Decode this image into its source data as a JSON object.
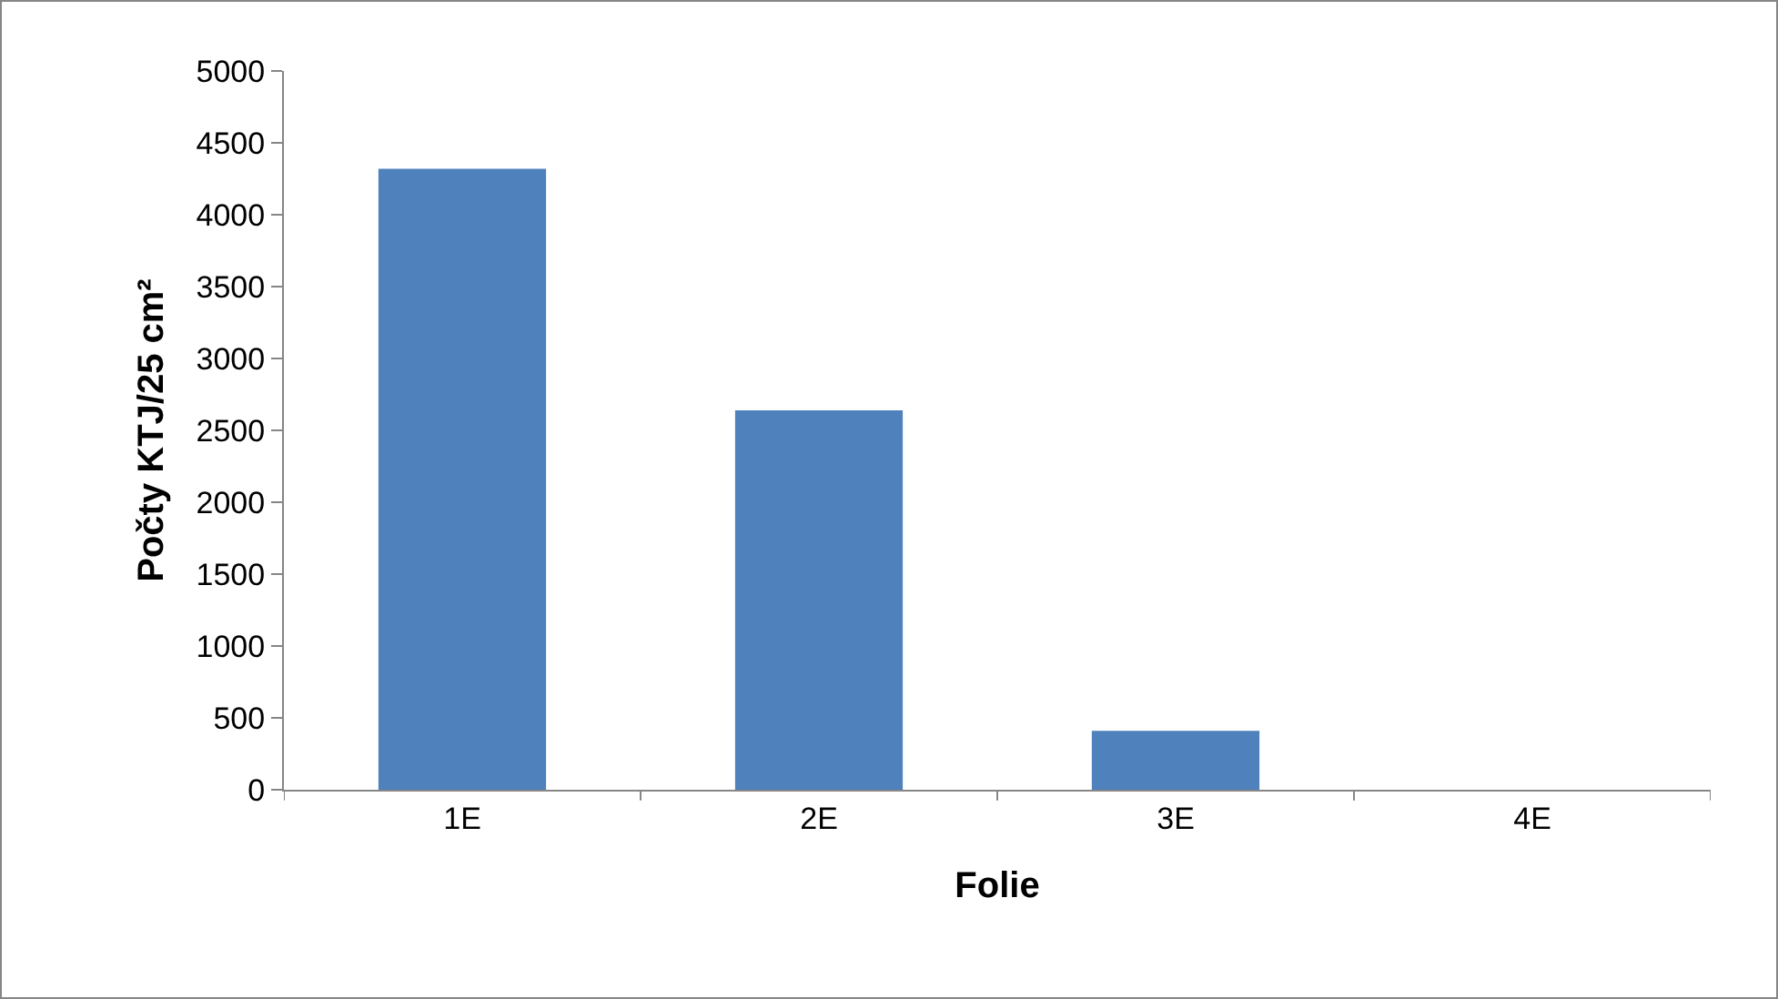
{
  "chart_data": {
    "type": "bar",
    "categories": [
      "1E",
      "2E",
      "3E",
      "4E"
    ],
    "values": [
      4320,
      2640,
      410,
      0
    ],
    "color": "#4f81bd",
    "xlabel": "Folie",
    "ylabel": "Počty KTJ/25 cm²",
    "ylim": [
      0,
      5000
    ],
    "yticks": [
      0,
      500,
      1000,
      1500,
      2000,
      2500,
      3000,
      3500,
      4000,
      4500,
      5000
    ],
    "grid": false,
    "legend": false
  }
}
